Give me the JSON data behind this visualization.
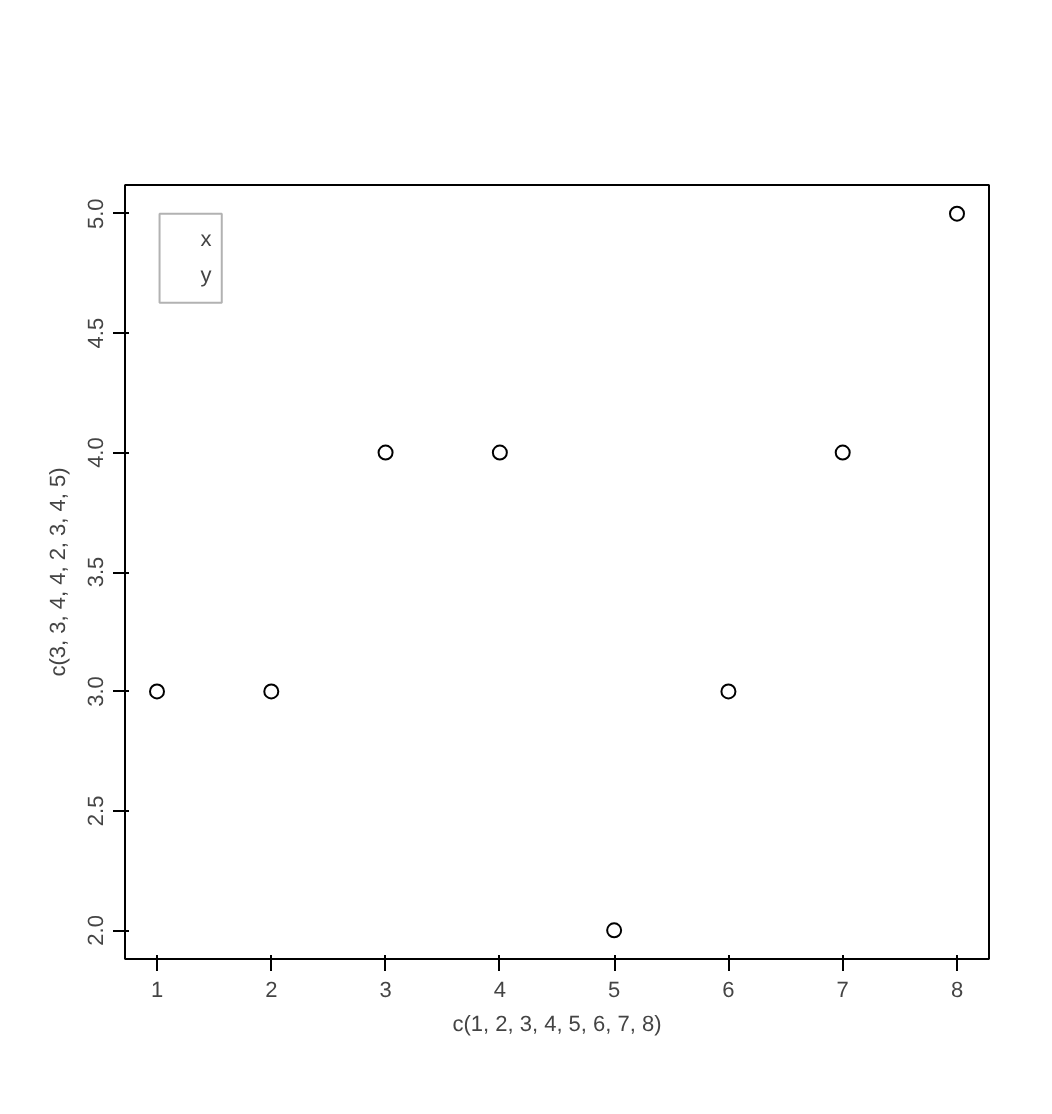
{
  "chart_data": {
    "type": "scatter",
    "xlabel": "c(1, 2, 3, 4, 5, 6, 7, 8)",
    "ylabel": "c(3, 3, 4, 4, 2, 3, 4, 5)",
    "x": [
      1,
      2,
      3,
      4,
      5,
      6,
      7,
      8
    ],
    "series": [
      {
        "color": "#000000",
        "values": [
          3,
          3,
          4,
          4,
          2,
          3,
          4,
          5
        ]
      }
    ],
    "xlim": [
      0.72,
      8.28
    ],
    "ylim": [
      1.88,
      5.12
    ],
    "xticks": [
      1,
      2,
      3,
      4,
      5,
      6,
      7,
      8
    ],
    "yticks": [
      {
        "value": 2,
        "label": "2.0"
      },
      {
        "value": 2.5,
        "label": "2.5"
      },
      {
        "value": 3,
        "label": "3.0"
      },
      {
        "value": 3.5,
        "label": "3.5"
      },
      {
        "value": 4,
        "label": "4.0"
      },
      {
        "value": 4.5,
        "label": "4.5"
      },
      {
        "value": 5,
        "label": "5.0"
      }
    ],
    "annotations": [
      "x",
      "y"
    ],
    "marker": "circle",
    "grid": false
  }
}
